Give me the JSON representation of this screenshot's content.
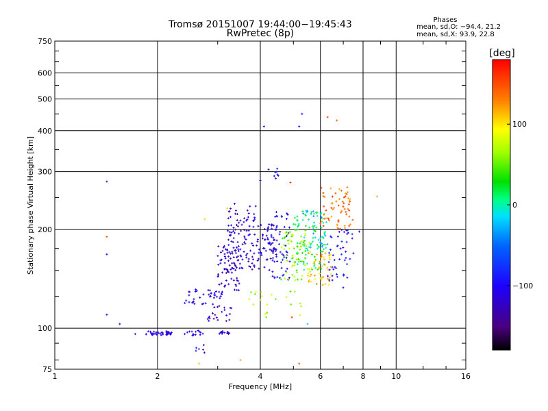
{
  "chart_data": {
    "type": "scatter",
    "title": "Tromsø 20151007 19:44:00−19:45:43",
    "subtitle": "RwPretec (8p)",
    "xlabel": "Frequency [MHz]",
    "ylabel": "Stationary phase Virtual Height [km]",
    "x_scale": "log2",
    "y_scale": "log",
    "xlim": [
      1,
      16
    ],
    "ylim": [
      75,
      750
    ],
    "xticks": [
      1,
      2,
      4,
      6,
      8,
      10,
      16
    ],
    "yticks": [
      75,
      100,
      200,
      300,
      400,
      500,
      600,
      750
    ],
    "grid": true,
    "stats": {
      "title": "Phases",
      "line_o": "mean, sd,O: −94.4, 21.2",
      "line_x": "mean, sd,X:  93.9, 22.8"
    },
    "colorbar": {
      "label": "[deg]",
      "range": [
        -180,
        180
      ],
      "ticks": [
        100,
        0,
        -100
      ]
    },
    "series_clusters": [
      {
        "x": [
          1.85,
          2.2
        ],
        "y": [
          95,
          98
        ],
        "phase": -110,
        "n": 40
      },
      {
        "x": [
          2.4,
          2.8
        ],
        "y": [
          95,
          99
        ],
        "phase": -110,
        "n": 14
      },
      {
        "x": [
          3.0,
          3.3
        ],
        "y": [
          96,
          98
        ],
        "phase": -115,
        "n": 14
      },
      {
        "x": [
          2.5,
          2.75
        ],
        "y": [
          84,
          92
        ],
        "phase": -110,
        "n": 6
      },
      {
        "x": [
          2.4,
          3.1
        ],
        "y": [
          118,
          132
        ],
        "phase": -110,
        "n": 40
      },
      {
        "x": [
          2.8,
          3.3
        ],
        "y": [
          105,
          118
        ],
        "phase": -125,
        "n": 22
      },
      {
        "x": [
          3.0,
          3.5
        ],
        "y": [
          130,
          180
        ],
        "phase": -120,
        "n": 70
      },
      {
        "x": [
          3.2,
          3.9
        ],
        "y": [
          150,
          240
        ],
        "phase": -120,
        "n": 100
      },
      {
        "x": [
          3.9,
          4.5
        ],
        "y": [
          150,
          210
        ],
        "phase": -115,
        "n": 60
      },
      {
        "x": [
          4.3,
          4.9
        ],
        "y": [
          140,
          230
        ],
        "phase": -100,
        "n": 55
      },
      {
        "x": [
          4.6,
          5.6
        ],
        "y": [
          140,
          200
        ],
        "phase": 60,
        "n": 70
      },
      {
        "x": [
          5.0,
          6.2
        ],
        "y": [
          150,
          230
        ],
        "phase": 20,
        "n": 80
      },
      {
        "x": [
          5.5,
          6.5
        ],
        "y": [
          135,
          170
        ],
        "phase": 110,
        "n": 50
      },
      {
        "x": [
          6.0,
          7.5
        ],
        "y": [
          200,
          270
        ],
        "phase": 140,
        "n": 65
      },
      {
        "x": [
          6.3,
          7.5
        ],
        "y": [
          140,
          200
        ],
        "phase": -100,
        "n": 45
      },
      {
        "x": [
          5.3,
          6.3
        ],
        "y": [
          175,
          230
        ],
        "phase": -20,
        "n": 35
      },
      {
        "x": [
          4.2,
          4.6
        ],
        "y": [
          285,
          310
        ],
        "phase": -100,
        "n": 8
      },
      {
        "x": [
          3.7,
          5.3
        ],
        "y": [
          105,
          130
        ],
        "phase": 70,
        "n": 22
      }
    ],
    "points": [
      {
        "x": 1.42,
        "y": 280,
        "phase": -120
      },
      {
        "x": 1.42,
        "y": 190,
        "phase": 150
      },
      {
        "x": 1.42,
        "y": 168,
        "phase": -130
      },
      {
        "x": 1.42,
        "y": 110,
        "phase": -100
      },
      {
        "x": 1.55,
        "y": 103,
        "phase": -100
      },
      {
        "x": 1.72,
        "y": 96,
        "phase": -110
      },
      {
        "x": 4.1,
        "y": 412,
        "phase": -110
      },
      {
        "x": 5.2,
        "y": 412,
        "phase": -110
      },
      {
        "x": 5.3,
        "y": 450,
        "phase": -100
      },
      {
        "x": 6.3,
        "y": 440,
        "phase": 150
      },
      {
        "x": 6.7,
        "y": 430,
        "phase": 140
      },
      {
        "x": 5.2,
        "y": 78,
        "phase": 150
      },
      {
        "x": 3.5,
        "y": 80,
        "phase": 120
      },
      {
        "x": 4.95,
        "y": 108,
        "phase": 160
      },
      {
        "x": 5.5,
        "y": 103,
        "phase": -20
      },
      {
        "x": 7.0,
        "y": 133,
        "phase": -110
      },
      {
        "x": 7.8,
        "y": 197,
        "phase": -100
      },
      {
        "x": 8.8,
        "y": 252,
        "phase": 120
      },
      {
        "x": 4.0,
        "y": 282,
        "phase": -100
      },
      {
        "x": 4.9,
        "y": 278,
        "phase": 160
      },
      {
        "x": 2.75,
        "y": 215,
        "phase": 110
      },
      {
        "x": 3.2,
        "y": 232,
        "phase": 110
      },
      {
        "x": 2.65,
        "y": 78,
        "phase": 110
      }
    ]
  }
}
